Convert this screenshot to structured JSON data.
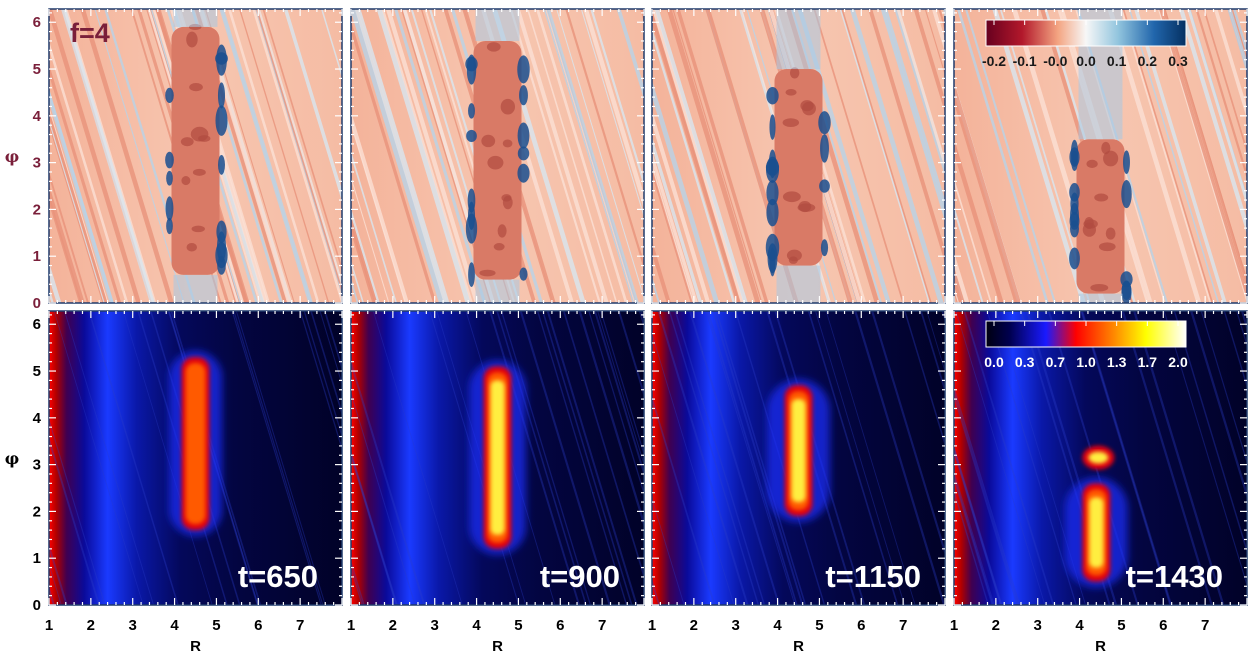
{
  "figure": {
    "panel_label": "f=4",
    "colors": {
      "row_label": "#7a1f3a",
      "frame": "#1f3a6b",
      "axis_text": "#000000"
    }
  },
  "chart_data": [
    {
      "type": "heatmap",
      "row": "top",
      "quantity": "",
      "colormap": "diverging red-white-blue",
      "colorbar_ticks": [
        "-0.2",
        "-0.1",
        "-0.0",
        "0.0",
        "0.1",
        "0.2",
        "0.3"
      ],
      "colorbar_range": [
        -0.25,
        0.35
      ],
      "ylabel": "φ",
      "xlabel": "",
      "y_ticks": [
        "0",
        "1",
        "2",
        "3",
        "4",
        "5",
        "6"
      ],
      "ylim": [
        0,
        6.283
      ],
      "xlim": [
        1,
        8
      ],
      "panels": [
        {
          "time_label": "",
          "vortex_phi_range": [
            0.6,
            5.9
          ]
        },
        {
          "time_label": "",
          "vortex_phi_range": [
            0.5,
            5.6
          ]
        },
        {
          "time_label": "",
          "vortex_phi_range": [
            0.8,
            5.0
          ]
        },
        {
          "time_label": "",
          "vortex_phi_range": [
            0.2,
            3.5
          ]
        }
      ]
    },
    {
      "type": "heatmap",
      "row": "bottom",
      "quantity": "",
      "colormap": "black-blue-red-yellow-white",
      "colorbar_ticks": [
        "0.0",
        "0.3",
        "0.7",
        "1.0",
        "1.3",
        "1.7",
        "2.0"
      ],
      "colorbar_range": [
        0,
        2.2
      ],
      "ylabel": "φ",
      "xlabel": "R",
      "y_ticks": [
        "0",
        "1",
        "2",
        "3",
        "4",
        "5",
        "6"
      ],
      "x_ticks": [
        "1",
        "2",
        "3",
        "4",
        "5",
        "6",
        "7"
      ],
      "ylim": [
        0,
        6.283
      ],
      "xlim": [
        1,
        8
      ],
      "panels": [
        {
          "time_label": "t=650",
          "vortex_R": 4.5,
          "vortex_phi_range": [
            1.6,
            5.3
          ],
          "peak": 1.1
        },
        {
          "time_label": "t=900",
          "vortex_R": 4.5,
          "vortex_phi_range": [
            1.2,
            5.1
          ],
          "peak": 1.4
        },
        {
          "time_label": "t=1150",
          "vortex_R": 4.5,
          "vortex_phi_range": [
            1.9,
            4.7
          ],
          "peak": 1.9
        },
        {
          "time_label": "t=1430",
          "vortex_R": 4.4,
          "vortex_phi_range": [
            0.5,
            2.6
          ],
          "peak": 1.9,
          "secondary_phi": 3.15
        }
      ]
    }
  ]
}
